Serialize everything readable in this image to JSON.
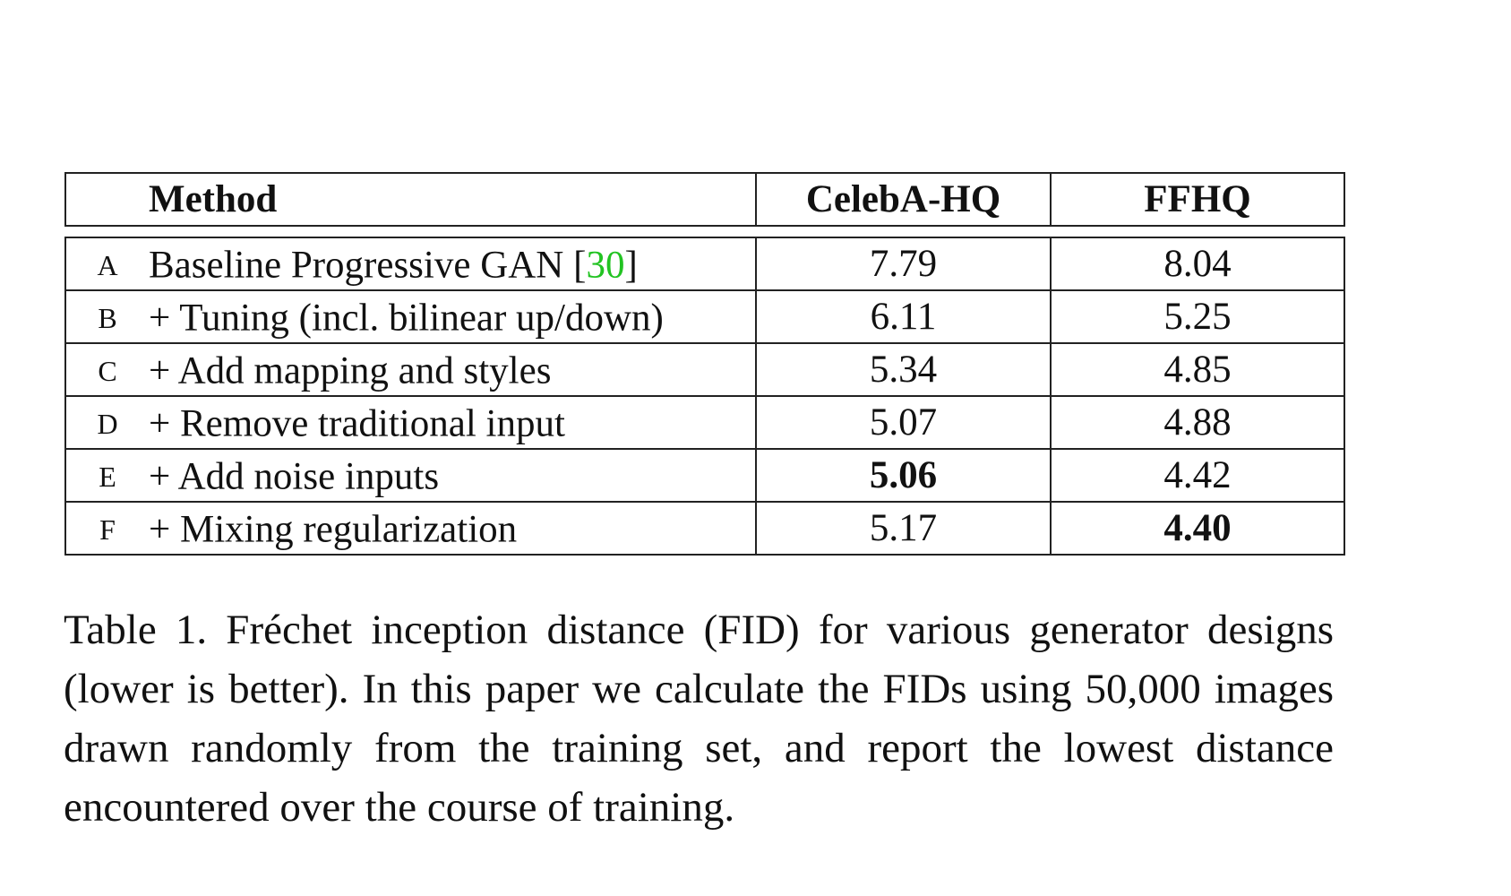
{
  "table": {
    "headers": {
      "method": "Method",
      "celeba": "CelebA-HQ",
      "ffhq": "FFHQ"
    },
    "rows": [
      {
        "label": "A",
        "method": "Baseline Progressive GAN [",
        "cite": "30",
        "method_end": "]",
        "celeba": "7.79",
        "ffhq": "8.04",
        "celeba_bold": false,
        "ffhq_bold": false
      },
      {
        "label": "B",
        "method": "+ Tuning (incl. bilinear up/down)",
        "celeba": "6.11",
        "ffhq": "5.25",
        "celeba_bold": false,
        "ffhq_bold": false
      },
      {
        "label": "C",
        "method": "+ Add mapping and styles",
        "celeba": "5.34",
        "ffhq": "4.85",
        "celeba_bold": false,
        "ffhq_bold": false
      },
      {
        "label": "D",
        "method": "+ Remove traditional input",
        "celeba": "5.07",
        "ffhq": "4.88",
        "celeba_bold": false,
        "ffhq_bold": false
      },
      {
        "label": "E",
        "method": "+ Add noise inputs",
        "celeba": "5.06",
        "ffhq": "4.42",
        "celeba_bold": true,
        "ffhq_bold": false
      },
      {
        "label": "F",
        "method": "+ Mixing regularization",
        "celeba": "5.17",
        "ffhq": "4.40",
        "celeba_bold": false,
        "ffhq_bold": true
      }
    ]
  },
  "caption": "Table 1. Fréchet inception distance (FID) for various generator designs (lower is better). In this paper we calculate the FIDs using 50,000 images drawn randomly from the training set, and report the lowest distance encountered over the course of training.",
  "colors": {
    "citation": "#22c322",
    "border": "#222222",
    "text": "#111111"
  }
}
